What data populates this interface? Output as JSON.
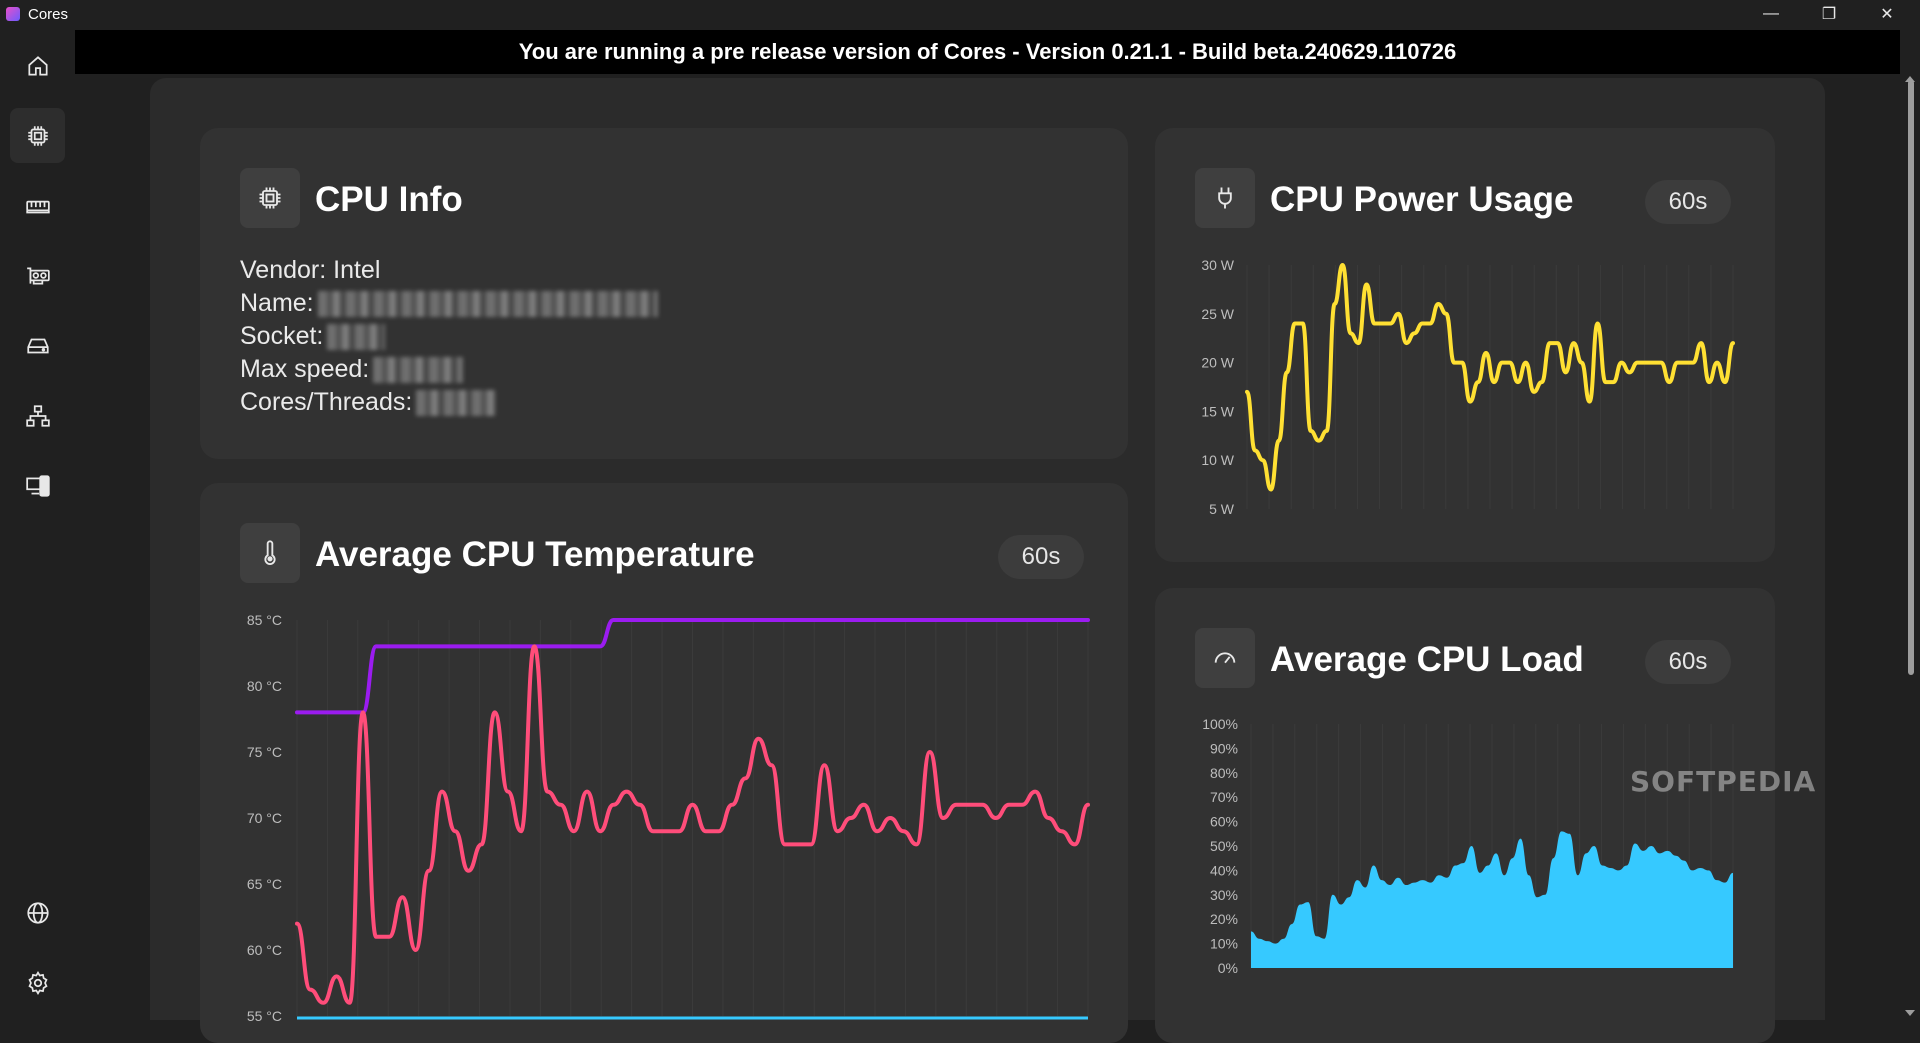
{
  "window": {
    "title": "Cores"
  },
  "banner": {
    "text": "You are running a pre release version of Cores - Version 0.21.1 - Build beta.240629.110726"
  },
  "watermark": "SOFTPEDIA",
  "sidebar": {
    "items": [
      {
        "name": "home",
        "icon": "home-icon"
      },
      {
        "name": "cpu",
        "icon": "cpu-icon",
        "active": true
      },
      {
        "name": "memory",
        "icon": "memory-icon"
      },
      {
        "name": "gpu",
        "icon": "gpu-icon"
      },
      {
        "name": "storage",
        "icon": "drive-icon"
      },
      {
        "name": "network",
        "icon": "network-icon"
      },
      {
        "name": "devices",
        "icon": "devices-icon"
      },
      {
        "name": "web",
        "icon": "globe-icon"
      },
      {
        "name": "settings",
        "icon": "gear-icon"
      }
    ]
  },
  "cpu_info": {
    "title": "CPU Info",
    "vendor_label": "Vendor: Intel",
    "name_label": "Name:",
    "socket_label": "Socket:",
    "max_speed_label": "Max speed:",
    "cores_label": "Cores/Threads:"
  },
  "temperature": {
    "title": "Average CPU Temperature",
    "period": "60s"
  },
  "power": {
    "title": "CPU Power Usage",
    "period": "60s"
  },
  "load": {
    "title": "Average CPU Load",
    "period": "60s"
  },
  "chart_data": [
    {
      "type": "line",
      "ylim": [
        55,
        85
      ],
      "y_ticks": [
        "85 °C",
        "80 °C",
        "75 °C",
        "70 °C",
        "65 °C",
        "60 °C",
        "55 °C"
      ],
      "series": [
        {
          "color": "#9b1cf0",
          "values": [
            78,
            78,
            78,
            78,
            78,
            78,
            83,
            83,
            83,
            83,
            83,
            83,
            83,
            83,
            83,
            83,
            83,
            83,
            83,
            83,
            83,
            83,
            83,
            83,
            85,
            85,
            85,
            85,
            85,
            85,
            85,
            85,
            85,
            85,
            85,
            85,
            85,
            85,
            85,
            85,
            85,
            85,
            85,
            85,
            85,
            85,
            85,
            85,
            85,
            85,
            85,
            85,
            85,
            85,
            85,
            85,
            85,
            85,
            85,
            85,
            85
          ]
        },
        {
          "color": "#ff4d7a",
          "values": [
            62,
            57,
            56,
            58,
            56,
            78,
            61,
            61,
            64,
            60,
            66,
            72,
            69,
            66,
            68,
            78,
            72,
            69,
            83,
            72,
            71,
            69,
            72,
            69,
            71,
            72,
            71,
            69,
            69,
            69,
            71,
            69,
            69,
            71,
            73,
            76,
            74,
            68,
            68,
            68,
            74,
            69,
            70,
            71,
            69,
            70,
            69,
            68,
            75,
            70,
            71,
            71,
            71,
            70,
            71,
            71,
            72,
            70,
            69,
            68,
            71
          ]
        }
      ]
    },
    {
      "type": "line",
      "ylim": [
        5,
        30
      ],
      "y_ticks": [
        "30 W",
        "25 W",
        "20 W",
        "15 W",
        "10 W",
        "5 W"
      ],
      "series": [
        {
          "color": "#ffe033",
          "values": [
            17,
            11,
            10,
            7,
            12,
            19,
            24,
            24,
            13,
            12,
            13,
            26,
            30,
            23,
            22,
            28,
            24,
            24,
            24,
            25,
            22,
            23,
            24,
            24,
            26,
            25,
            20,
            20,
            16,
            18,
            21,
            18,
            20,
            20,
            18,
            20,
            17,
            18,
            22,
            22,
            19,
            22,
            20,
            16,
            24,
            18,
            18,
            20,
            19,
            20,
            20,
            20,
            20,
            18,
            20,
            20,
            20,
            22,
            18,
            20,
            18,
            22
          ]
        }
      ]
    },
    {
      "type": "area",
      "ylim": [
        0,
        100
      ],
      "y_ticks": [
        "100%",
        "90%",
        "80%",
        "70%",
        "60%",
        "50%",
        "40%",
        "30%",
        "20%",
        "10%",
        "0%"
      ],
      "series": [
        {
          "color": "#36c9ff",
          "values": [
            15,
            12,
            11,
            10,
            12,
            18,
            26,
            27,
            13,
            12,
            30,
            26,
            29,
            36,
            33,
            42,
            36,
            34,
            37,
            34,
            35,
            36,
            35,
            38,
            37,
            42,
            43,
            50,
            39,
            42,
            47,
            38,
            45,
            53,
            38,
            29,
            30,
            45,
            56,
            55,
            38,
            47,
            50,
            42,
            41,
            40,
            42,
            51,
            48,
            50,
            47,
            48,
            46,
            44,
            40,
            41,
            40,
            36,
            35,
            39
          ]
        }
      ]
    }
  ]
}
